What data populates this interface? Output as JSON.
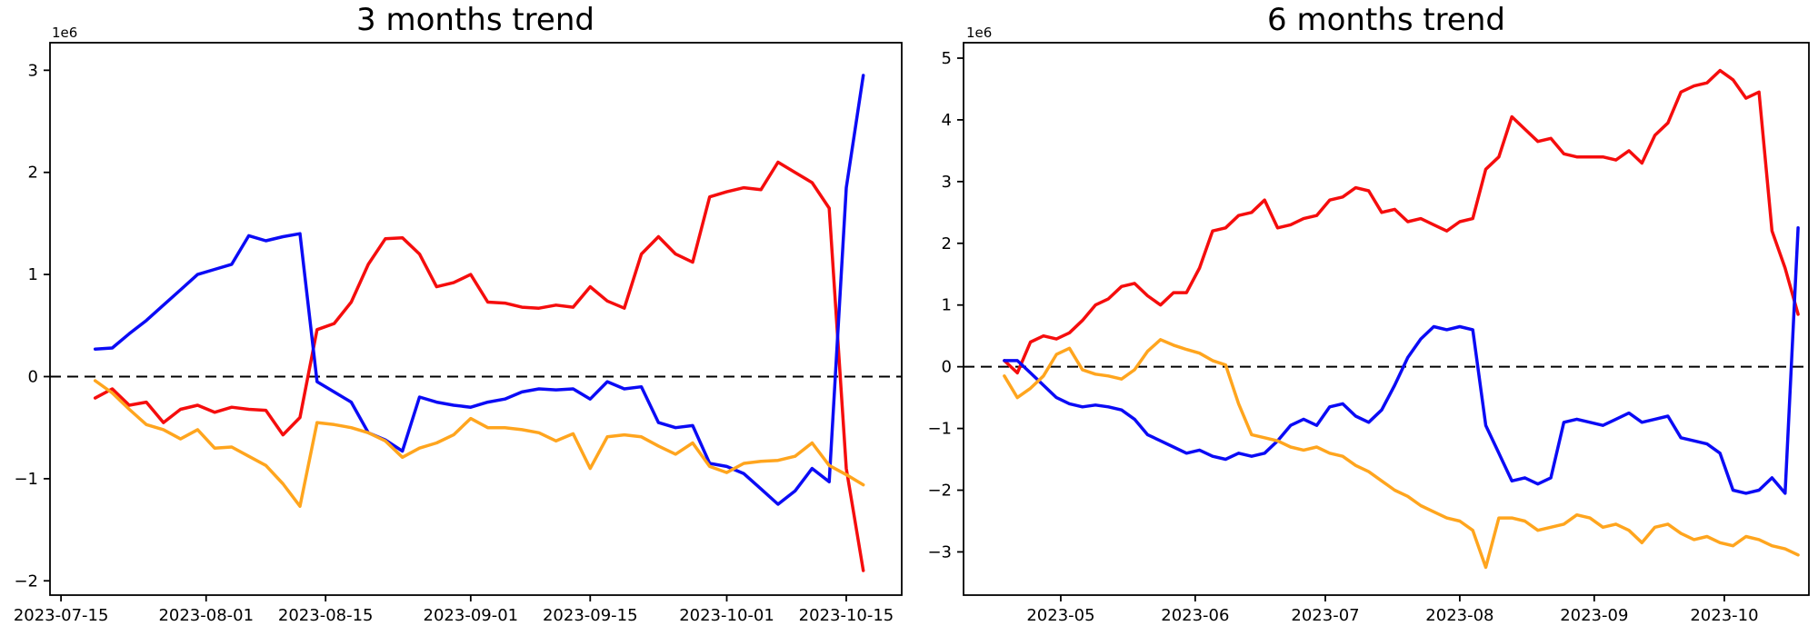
{
  "figure": {
    "background": "#ffffff"
  },
  "colors": {
    "red": "#f50d0d",
    "blue": "#0b0bf5",
    "orange": "#ffa51e",
    "axis": "#000000",
    "zero_line": "#000000"
  },
  "chart_data": [
    {
      "type": "line",
      "title": "3 months trend",
      "offset_text": "1e6",
      "value_unit_multiplier": 1000000,
      "grid": false,
      "legend": "none",
      "zero_line": {
        "value": 0,
        "style": "dashed",
        "color": "#000000"
      },
      "ylim": [
        -2.14,
        3.27
      ],
      "y_ticks": [
        3,
        2,
        1,
        0,
        -1,
        -2
      ],
      "y_tick_labels": [
        "3",
        "2",
        "1",
        "0",
        "−1",
        "−2"
      ],
      "xlim": [
        "2023-07-13T17:00:00",
        "2023-10-21T12:00:00"
      ],
      "x_ticks": [
        "2023-07-15",
        "2023-08-01",
        "2023-08-15",
        "2023-09-01",
        "2023-09-15",
        "2023-10-01",
        "2023-10-15"
      ],
      "x_tick_labels": [
        "2023-07-15",
        "2023-08-01",
        "2023-08-15",
        "2023-09-01",
        "2023-09-15",
        "2023-10-01",
        "2023-10-15"
      ],
      "dates": [
        "2023-07-19",
        "2023-07-21",
        "2023-07-23",
        "2023-07-25",
        "2023-07-27",
        "2023-07-29",
        "2023-07-31",
        "2023-08-02",
        "2023-08-04",
        "2023-08-06",
        "2023-08-08",
        "2023-08-10",
        "2023-08-12",
        "2023-08-14",
        "2023-08-16",
        "2023-08-18",
        "2023-08-20",
        "2023-08-22",
        "2023-08-24",
        "2023-08-26",
        "2023-08-28",
        "2023-08-30",
        "2023-09-01",
        "2023-09-03",
        "2023-09-05",
        "2023-09-07",
        "2023-09-09",
        "2023-09-11",
        "2023-09-13",
        "2023-09-15",
        "2023-09-17",
        "2023-09-19",
        "2023-09-21",
        "2023-09-23",
        "2023-09-25",
        "2023-09-27",
        "2023-09-29",
        "2023-10-01",
        "2023-10-03",
        "2023-10-05",
        "2023-10-07",
        "2023-10-09",
        "2023-10-11",
        "2023-10-13",
        "2023-10-15",
        "2023-10-17"
      ],
      "series": [
        {
          "name": "red",
          "values": [
            -0.21,
            -0.12,
            -0.28,
            -0.25,
            -0.45,
            -0.32,
            -0.28,
            -0.35,
            -0.3,
            -0.32,
            -0.33,
            -0.57,
            -0.4,
            0.46,
            0.52,
            0.73,
            1.1,
            1.35,
            1.36,
            1.2,
            0.88,
            0.92,
            1.0,
            0.73,
            0.72,
            0.68,
            0.67,
            0.7,
            0.68,
            0.88,
            0.74,
            0.67,
            1.2,
            1.37,
            1.2,
            1.12,
            1.76,
            1.81,
            1.85,
            1.83,
            2.1,
            2.0,
            1.9,
            1.65,
            -0.9,
            -1.9
          ]
        },
        {
          "name": "blue",
          "values": [
            0.27,
            0.28,
            0.42,
            0.55,
            0.7,
            0.85,
            1.0,
            1.05,
            1.1,
            1.38,
            1.33,
            1.37,
            1.4,
            -0.05,
            -0.15,
            -0.25,
            -0.55,
            -0.62,
            -0.73,
            -0.2,
            -0.25,
            -0.28,
            -0.3,
            -0.25,
            -0.22,
            -0.15,
            -0.12,
            -0.13,
            -0.12,
            -0.22,
            -0.05,
            -0.12,
            -0.1,
            -0.45,
            -0.5,
            -0.48,
            -0.85,
            -0.88,
            -0.95,
            -1.1,
            -1.25,
            -1.12,
            -0.9,
            -1.03,
            1.85,
            2.95
          ]
        },
        {
          "name": "orange",
          "values": [
            -0.04,
            -0.16,
            -0.32,
            -0.47,
            -0.52,
            -0.61,
            -0.52,
            -0.7,
            -0.69,
            -0.78,
            -0.87,
            -1.05,
            -1.27,
            -0.45,
            -0.47,
            -0.5,
            -0.55,
            -0.63,
            -0.79,
            -0.7,
            -0.65,
            -0.57,
            -0.41,
            -0.5,
            -0.5,
            -0.52,
            -0.55,
            -0.63,
            -0.56,
            -0.9,
            -0.59,
            -0.57,
            -0.59,
            -0.68,
            -0.76,
            -0.65,
            -0.88,
            -0.94,
            -0.85,
            -0.83,
            -0.82,
            -0.78,
            -0.65,
            -0.87,
            -0.96,
            -1.06
          ]
        }
      ]
    },
    {
      "type": "line",
      "title": "6 months trend",
      "offset_text": "1e6",
      "value_unit_multiplier": 1000000,
      "grid": false,
      "legend": "none",
      "zero_line": {
        "value": 0,
        "style": "dashed",
        "color": "#000000"
      },
      "ylim": [
        -3.7,
        5.25
      ],
      "y_ticks": [
        5,
        4,
        3,
        2,
        1,
        0,
        -1,
        -2,
        -3
      ],
      "y_tick_labels": [
        "5",
        "4",
        "3",
        "2",
        "1",
        "0",
        "−1",
        "−2",
        "−3"
      ],
      "xlim": [
        "2023-04-08T14:00:00",
        "2023-10-20T12:00:00"
      ],
      "x_ticks": [
        "2023-05-01",
        "2023-06-01",
        "2023-07-01",
        "2023-08-01",
        "2023-09-01",
        "2023-10-01"
      ],
      "x_tick_labels": [
        "2023-05",
        "2023-06",
        "2023-07",
        "2023-08",
        "2023-09",
        "2023-10"
      ],
      "dates": [
        "2023-04-18",
        "2023-04-21",
        "2023-04-24",
        "2023-04-27",
        "2023-04-30",
        "2023-05-03",
        "2023-05-06",
        "2023-05-09",
        "2023-05-12",
        "2023-05-15",
        "2023-05-18",
        "2023-05-21",
        "2023-05-24",
        "2023-05-27",
        "2023-05-30",
        "2023-06-02",
        "2023-06-05",
        "2023-06-08",
        "2023-06-11",
        "2023-06-14",
        "2023-06-17",
        "2023-06-20",
        "2023-06-23",
        "2023-06-26",
        "2023-06-29",
        "2023-07-02",
        "2023-07-05",
        "2023-07-08",
        "2023-07-11",
        "2023-07-14",
        "2023-07-17",
        "2023-07-20",
        "2023-07-23",
        "2023-07-26",
        "2023-07-29",
        "2023-08-01",
        "2023-08-04",
        "2023-08-07",
        "2023-08-10",
        "2023-08-13",
        "2023-08-16",
        "2023-08-19",
        "2023-08-22",
        "2023-08-25",
        "2023-08-28",
        "2023-08-31",
        "2023-09-03",
        "2023-09-06",
        "2023-09-09",
        "2023-09-12",
        "2023-09-15",
        "2023-09-18",
        "2023-09-21",
        "2023-09-24",
        "2023-09-27",
        "2023-09-30",
        "2023-10-03",
        "2023-10-06",
        "2023-10-09",
        "2023-10-12",
        "2023-10-15",
        "2023-10-18"
      ],
      "series": [
        {
          "name": "red",
          "values": [
            0.1,
            -0.1,
            0.4,
            0.5,
            0.45,
            0.55,
            0.75,
            1.0,
            1.1,
            1.3,
            1.35,
            1.15,
            1.0,
            1.2,
            1.2,
            1.6,
            2.2,
            2.25,
            2.45,
            2.5,
            2.7,
            2.25,
            2.3,
            2.4,
            2.45,
            2.7,
            2.75,
            2.9,
            2.85,
            2.5,
            2.55,
            2.35,
            2.4,
            2.3,
            2.2,
            2.35,
            2.4,
            3.2,
            3.4,
            4.05,
            3.85,
            3.65,
            3.7,
            3.45,
            3.4,
            3.4,
            3.4,
            3.35,
            3.5,
            3.3,
            3.75,
            3.95,
            4.45,
            4.55,
            4.6,
            4.8,
            4.65,
            4.35,
            4.45,
            2.2,
            1.6,
            0.85
          ]
        },
        {
          "name": "blue",
          "values": [
            0.1,
            0.1,
            -0.1,
            -0.3,
            -0.5,
            -0.6,
            -0.65,
            -0.62,
            -0.65,
            -0.7,
            -0.85,
            -1.1,
            -1.2,
            -1.3,
            -1.4,
            -1.35,
            -1.45,
            -1.5,
            -1.4,
            -1.45,
            -1.4,
            -1.2,
            -0.95,
            -0.85,
            -0.95,
            -0.65,
            -0.6,
            -0.8,
            -0.9,
            -0.7,
            -0.3,
            0.15,
            0.45,
            0.65,
            0.6,
            0.65,
            0.6,
            -0.95,
            -1.4,
            -1.85,
            -1.8,
            -1.9,
            -1.8,
            -0.9,
            -0.85,
            -0.9,
            -0.95,
            -0.85,
            -0.75,
            -0.9,
            -0.85,
            -0.8,
            -1.15,
            -1.2,
            -1.25,
            -1.4,
            -2.0,
            -2.05,
            -2.0,
            -1.8,
            -2.05,
            2.25
          ]
        },
        {
          "name": "orange",
          "values": [
            -0.15,
            -0.5,
            -0.35,
            -0.15,
            0.2,
            0.3,
            -0.05,
            -0.12,
            -0.15,
            -0.2,
            -0.05,
            0.25,
            0.44,
            0.35,
            0.28,
            0.22,
            0.1,
            0.03,
            -0.6,
            -1.1,
            -1.15,
            -1.2,
            -1.3,
            -1.35,
            -1.3,
            -1.4,
            -1.45,
            -1.6,
            -1.7,
            -1.85,
            -2.0,
            -2.1,
            -2.25,
            -2.35,
            -2.45,
            -2.5,
            -2.65,
            -3.25,
            -2.45,
            -2.45,
            -2.5,
            -2.65,
            -2.6,
            -2.55,
            -2.4,
            -2.45,
            -2.6,
            -2.55,
            -2.65,
            -2.85,
            -2.6,
            -2.55,
            -2.7,
            -2.8,
            -2.75,
            -2.85,
            -2.9,
            -2.75,
            -2.8,
            -2.9,
            -2.95,
            -3.05
          ]
        }
      ]
    }
  ]
}
